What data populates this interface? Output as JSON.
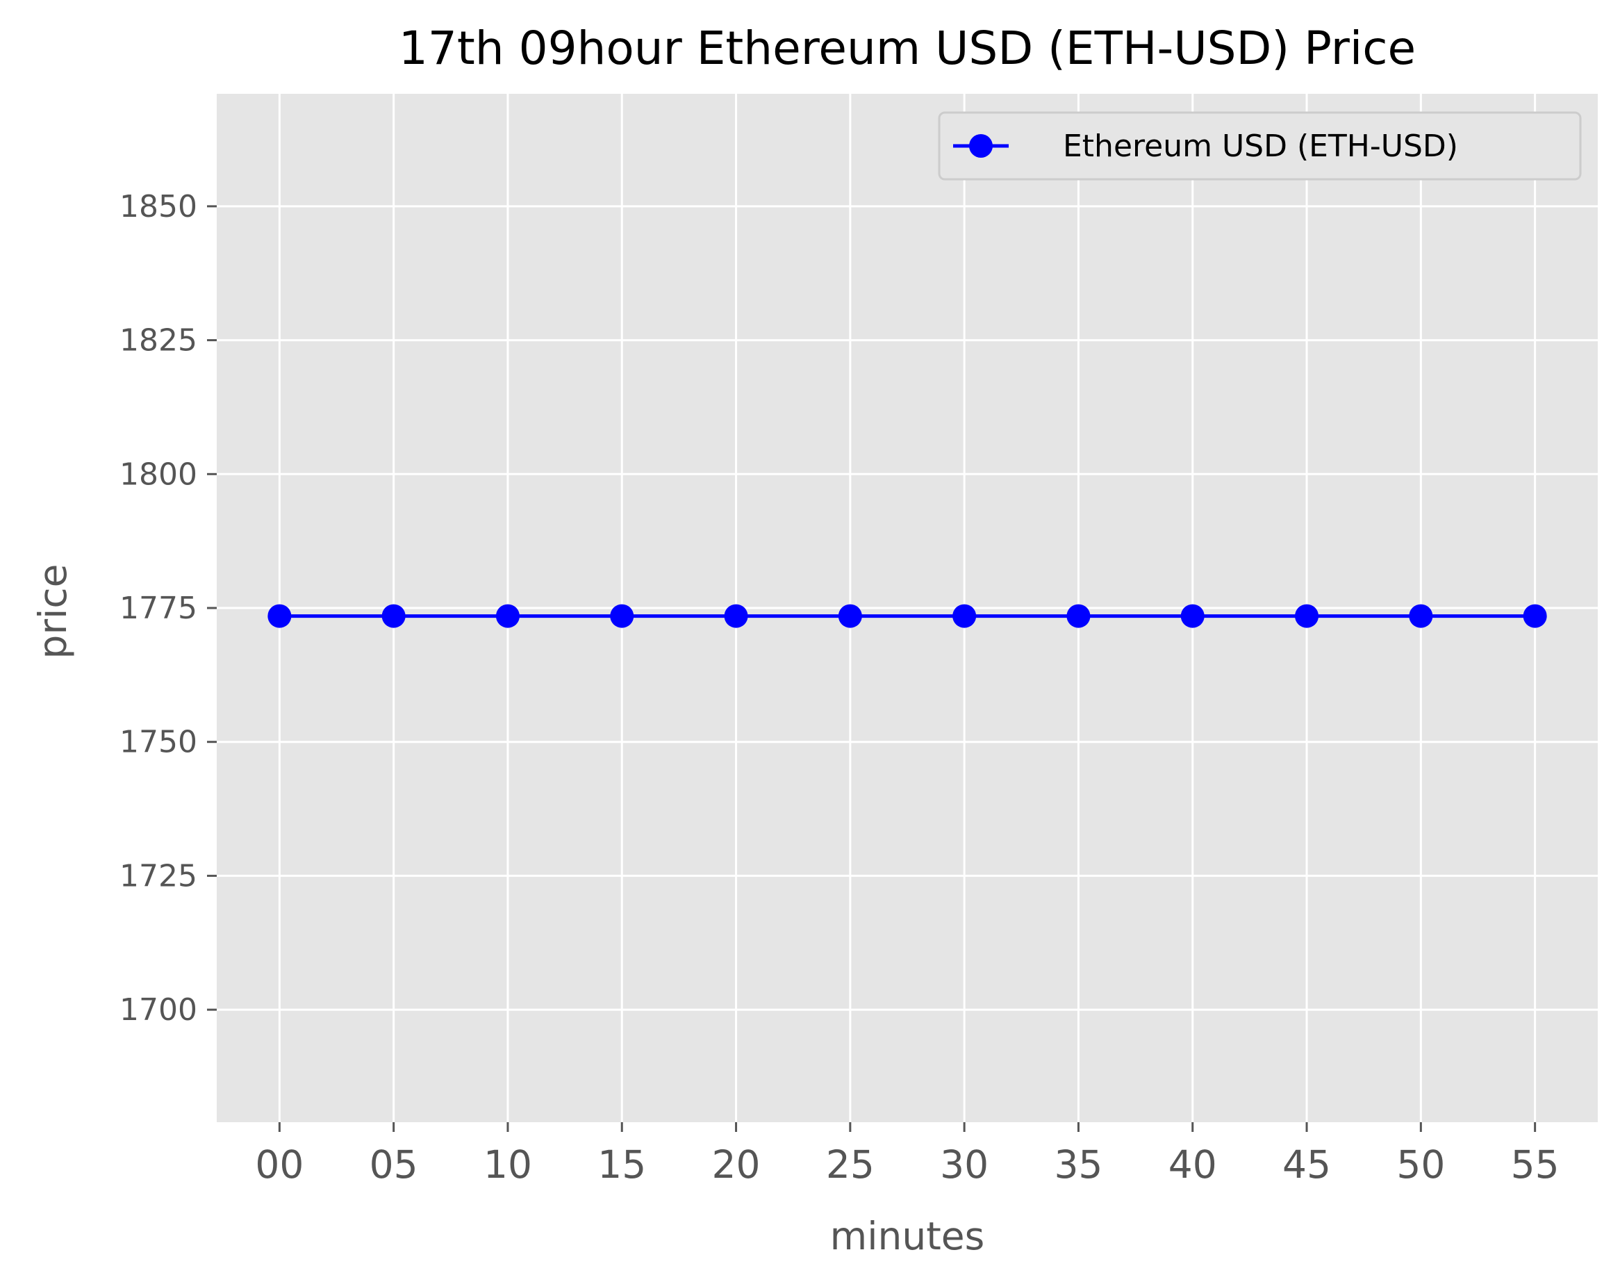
{
  "chart_data": {
    "type": "line",
    "title": "17th 09hour Ethereum USD (ETH-USD) Price",
    "xlabel": "minutes",
    "ylabel": "price",
    "categories": [
      "00",
      "05",
      "10",
      "15",
      "20",
      "25",
      "30",
      "35",
      "40",
      "45",
      "50",
      "55"
    ],
    "series": [
      {
        "name": "Ethereum USD (ETH-USD)",
        "values": [
          1773.5,
          1773.5,
          1773.5,
          1773.5,
          1773.5,
          1773.5,
          1773.5,
          1773.5,
          1773.5,
          1773.5,
          1773.5,
          1773.5
        ],
        "color": "#0000ff",
        "marker": "circle"
      }
    ],
    "ylim": [
      1679,
      1871
    ],
    "yticks": [
      1700,
      1725,
      1750,
      1775,
      1800,
      1825,
      1850
    ],
    "grid": true,
    "legend_position": "top-right",
    "background_color": "#e5e5e5"
  }
}
